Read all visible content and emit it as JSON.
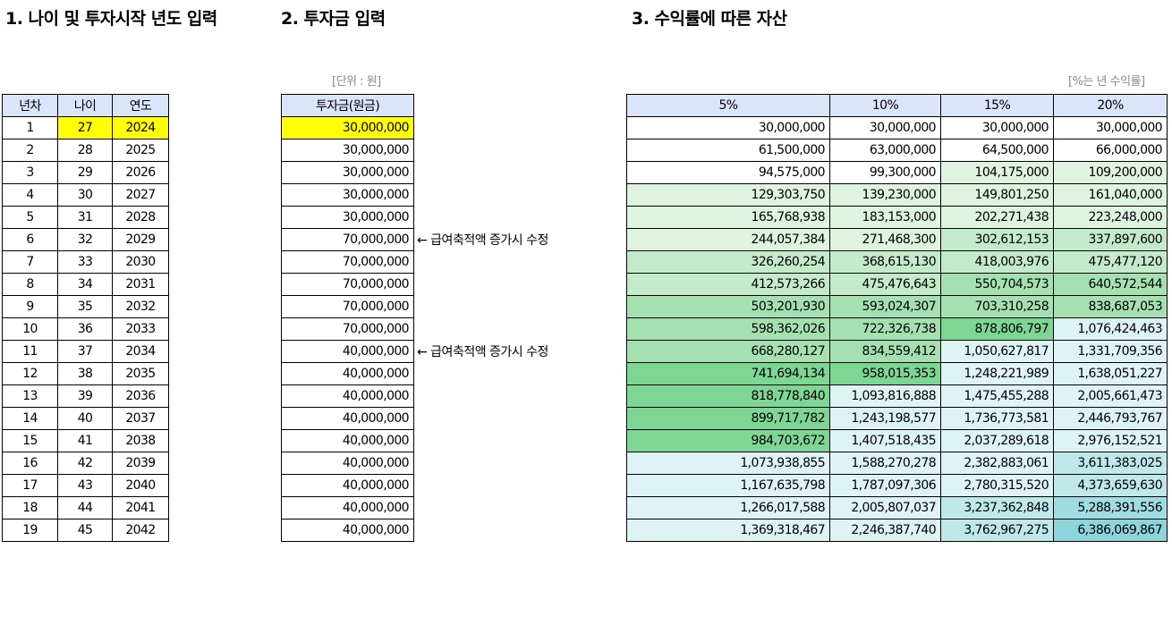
{
  "sections": {
    "age": {
      "title": "1. 나이 및 투자시작 년도 입력",
      "headers": [
        "년차",
        "나이",
        "연도"
      ]
    },
    "investment": {
      "title": "2. 투자금 입력",
      "unit_note": "[단위 : 원]",
      "header": "투자금(원금)"
    },
    "assets": {
      "title": "3. 수익률에 따른 자산",
      "rate_note": "[%는 년 수익률]",
      "headers": [
        "5%",
        "10%",
        "15%",
        "20%"
      ]
    }
  },
  "rows": [
    {
      "year": "1",
      "age": "27",
      "cal": "2024",
      "inv": "30,000,000",
      "r5": "30,000,000",
      "r10": "30,000,000",
      "r15": "30,000,000",
      "r20": "30,000,000"
    },
    {
      "year": "2",
      "age": "28",
      "cal": "2025",
      "inv": "30,000,000",
      "r5": "61,500,000",
      "r10": "63,000,000",
      "r15": "64,500,000",
      "r20": "66,000,000"
    },
    {
      "year": "3",
      "age": "29",
      "cal": "2026",
      "inv": "30,000,000",
      "r5": "94,575,000",
      "r10": "99,300,000",
      "r15": "104,175,000",
      "r20": "109,200,000"
    },
    {
      "year": "4",
      "age": "30",
      "cal": "2027",
      "inv": "30,000,000",
      "r5": "129,303,750",
      "r10": "139,230,000",
      "r15": "149,801,250",
      "r20": "161,040,000"
    },
    {
      "year": "5",
      "age": "31",
      "cal": "2028",
      "inv": "30,000,000",
      "r5": "165,768,938",
      "r10": "183,153,000",
      "r15": "202,271,438",
      "r20": "223,248,000"
    },
    {
      "year": "6",
      "age": "32",
      "cal": "2029",
      "inv": "70,000,000",
      "r5": "244,057,384",
      "r10": "271,468,300",
      "r15": "302,612,153",
      "r20": "337,897,600"
    },
    {
      "year": "7",
      "age": "33",
      "cal": "2030",
      "inv": "70,000,000",
      "r5": "326,260,254",
      "r10": "368,615,130",
      "r15": "418,003,976",
      "r20": "475,477,120"
    },
    {
      "year": "8",
      "age": "34",
      "cal": "2031",
      "inv": "70,000,000",
      "r5": "412,573,266",
      "r10": "475,476,643",
      "r15": "550,704,573",
      "r20": "640,572,544"
    },
    {
      "year": "9",
      "age": "35",
      "cal": "2032",
      "inv": "70,000,000",
      "r5": "503,201,930",
      "r10": "593,024,307",
      "r15": "703,310,258",
      "r20": "838,687,053"
    },
    {
      "year": "10",
      "age": "36",
      "cal": "2033",
      "inv": "70,000,000",
      "r5": "598,362,026",
      "r10": "722,326,738",
      "r15": "878,806,797",
      "r20": "1,076,424,463"
    },
    {
      "year": "11",
      "age": "37",
      "cal": "2034",
      "inv": "40,000,000",
      "r5": "668,280,127",
      "r10": "834,559,412",
      "r15": "1,050,627,817",
      "r20": "1,331,709,356"
    },
    {
      "year": "12",
      "age": "38",
      "cal": "2035",
      "inv": "40,000,000",
      "r5": "741,694,134",
      "r10": "958,015,353",
      "r15": "1,248,221,989",
      "r20": "1,638,051,227"
    },
    {
      "year": "13",
      "age": "39",
      "cal": "2036",
      "inv": "40,000,000",
      "r5": "818,778,840",
      "r10": "1,093,816,888",
      "r15": "1,475,455,288",
      "r20": "2,005,661,473"
    },
    {
      "year": "14",
      "age": "40",
      "cal": "2037",
      "inv": "40,000,000",
      "r5": "899,717,782",
      "r10": "1,243,198,577",
      "r15": "1,736,773,581",
      "r20": "2,446,793,767"
    },
    {
      "year": "15",
      "age": "41",
      "cal": "2038",
      "inv": "40,000,000",
      "r5": "984,703,672",
      "r10": "1,407,518,435",
      "r15": "2,037,289,618",
      "r20": "2,976,152,521"
    },
    {
      "year": "16",
      "age": "42",
      "cal": "2039",
      "inv": "40,000,000",
      "r5": "1,073,938,855",
      "r10": "1,588,270,278",
      "r15": "2,382,883,061",
      "r20": "3,611,383,025"
    },
    {
      "year": "17",
      "age": "43",
      "cal": "2040",
      "inv": "40,000,000",
      "r5": "1,167,635,798",
      "r10": "1,787,097,306",
      "r15": "2,780,315,520",
      "r20": "4,373,659,630"
    },
    {
      "year": "18",
      "age": "44",
      "cal": "2041",
      "inv": "40,000,000",
      "r5": "1,266,017,588",
      "r10": "2,005,807,037",
      "r15": "3,237,362,848",
      "r20": "5,288,391,556"
    },
    {
      "year": "19",
      "age": "45",
      "cal": "2042",
      "inv": "40,000,000",
      "r5": "1,369,318,467",
      "r10": "2,246,387,740",
      "r15": "3,762,967,275",
      "r20": "6,386,069,867"
    }
  ],
  "notes": [
    {
      "row": 6,
      "text": "← 급여축적액 증가시 수정"
    },
    {
      "row": 11,
      "text": "← 급여축적액 증가시 수정"
    }
  ],
  "colors": {
    "header_bg": "#dbe5f9",
    "input_highlight": "#ffff00",
    "bands": {
      "none": "#ffffff",
      "green1": "#dff3e1",
      "green2": "#c4ebc9",
      "green3": "#a5e0b1",
      "green4": "#7ed695",
      "teal1": "#def3f4",
      "teal2": "#bfe8eb",
      "teal3": "#9fdde3",
      "teal4": "#8cd5dc"
    }
  },
  "shading": [
    [
      "none",
      "none",
      "none",
      "none"
    ],
    [
      "none",
      "none",
      "none",
      "none"
    ],
    [
      "none",
      "none",
      "green1",
      "green1"
    ],
    [
      "green1",
      "green1",
      "green1",
      "green1"
    ],
    [
      "green1",
      "green1",
      "green1",
      "green1"
    ],
    [
      "green1",
      "green1",
      "green2",
      "green2"
    ],
    [
      "green2",
      "green2",
      "green2",
      "green2"
    ],
    [
      "green2",
      "green2",
      "green3",
      "green3"
    ],
    [
      "green3",
      "green3",
      "green3",
      "green3"
    ],
    [
      "green3",
      "green3",
      "green4",
      "teal1"
    ],
    [
      "green3",
      "green3",
      "teal1",
      "teal1"
    ],
    [
      "green4",
      "green4",
      "teal1",
      "teal1"
    ],
    [
      "green4",
      "teal1",
      "teal1",
      "teal1"
    ],
    [
      "green4",
      "teal1",
      "teal1",
      "teal1"
    ],
    [
      "green4",
      "teal1",
      "teal1",
      "teal1"
    ],
    [
      "teal1",
      "teal1",
      "teal1",
      "teal2"
    ],
    [
      "teal1",
      "teal1",
      "teal1",
      "teal2"
    ],
    [
      "teal1",
      "teal1",
      "teal2",
      "teal3"
    ],
    [
      "teal1",
      "teal1",
      "teal2",
      "teal4"
    ]
  ]
}
